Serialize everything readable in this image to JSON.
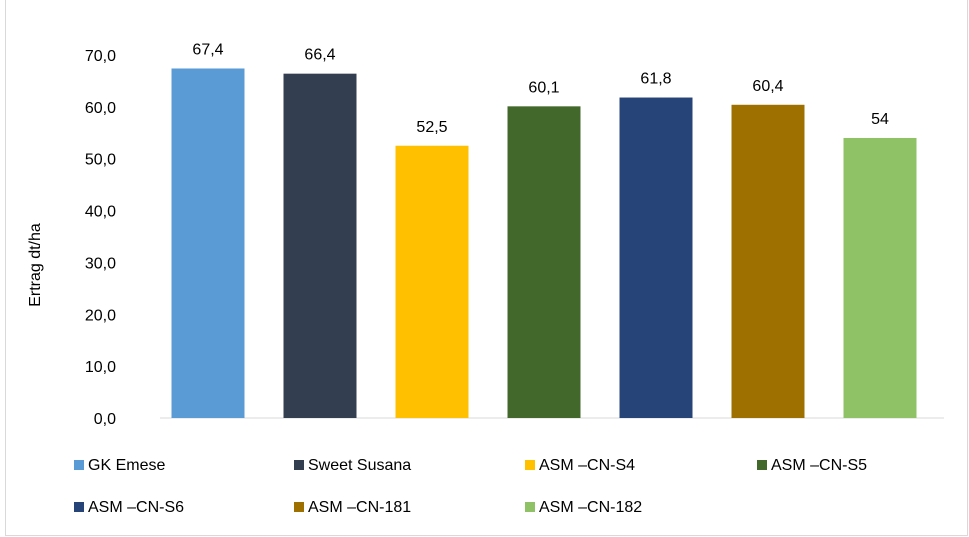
{
  "chart_data": {
    "type": "bar",
    "categories": [
      "GK Emese",
      "Sweet Susana",
      "ASM –CN-S4",
      "ASM –CN-S5",
      "ASM –CN-S6",
      "ASM –CN-181",
      "ASM –CN-182"
    ],
    "values": [
      67.4,
      66.4,
      52.5,
      60.1,
      61.8,
      60.4,
      54
    ],
    "data_labels": [
      "67,4",
      "66,4",
      "52,5",
      "60,1",
      "61,8",
      "60,4",
      "54"
    ],
    "colors": [
      "#5b9bd5",
      "#333f50",
      "#ffc000",
      "#43682b",
      "#264478",
      "#9e7000",
      "#8fc266"
    ],
    "ylabel": "Ertrag dt/ha",
    "xlabel": "",
    "ylim": [
      0,
      70
    ],
    "yticks": [
      0,
      10,
      20,
      30,
      40,
      50,
      60,
      70
    ],
    "ytick_labels": [
      "0,0",
      "10,0",
      "20,0",
      "30,0",
      "40,0",
      "50,0",
      "60,0",
      "70,0"
    ],
    "grid": false,
    "legend": {
      "position": "bottom",
      "entries": [
        "GK Emese",
        "Sweet Susana",
        "ASM –CN-S4",
        "ASM –CN-S5",
        "ASM –CN-S6",
        "ASM –CN-181",
        "ASM –CN-182"
      ]
    }
  }
}
